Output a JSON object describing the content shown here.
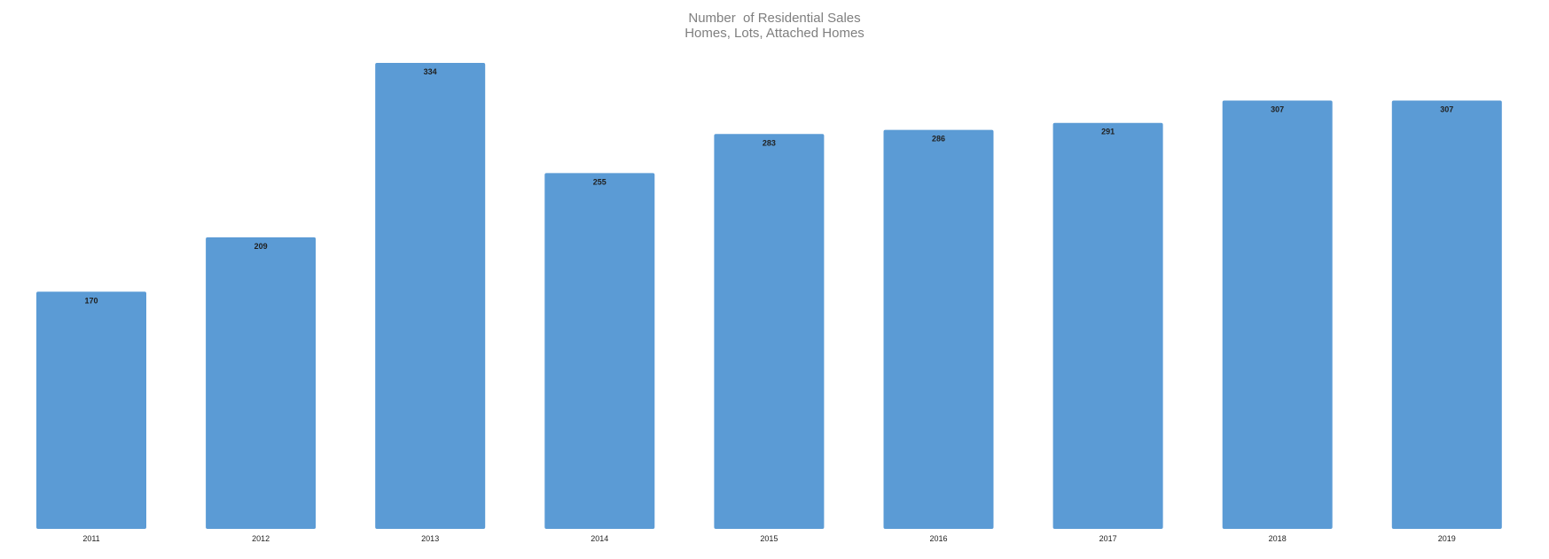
{
  "chart_data": {
    "type": "bar",
    "title": "Number  of Residential Sales",
    "subtitle": "Homes, Lots, Attached Homes",
    "categories": [
      "2011",
      "2012",
      "2013",
      "2014",
      "2015",
      "2016",
      "2017",
      "2018",
      "2019"
    ],
    "values": [
      170,
      209,
      334,
      255,
      283,
      286,
      291,
      307,
      307
    ],
    "xlabel": "",
    "ylabel": "",
    "ylim": [
      0,
      334
    ],
    "grid": false,
    "legend": "none",
    "show_data_labels": true,
    "bar_color": "#5b9bd5"
  }
}
